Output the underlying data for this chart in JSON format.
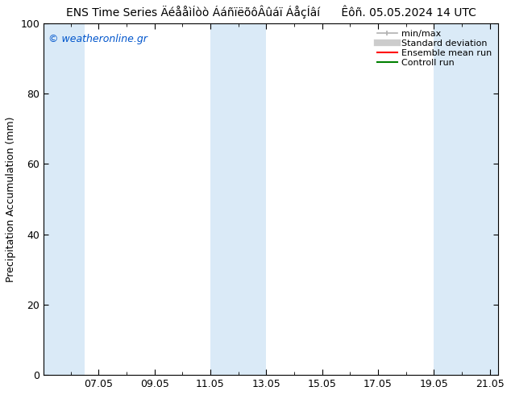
{
  "title": "ENS Time Series ÄéååìÍòò ÁáñïëõôÂûáï ÁåçÍâí",
  "title_right": "Êôñ. 05.05.2024 14 UTC",
  "ylabel": "Precipitation Accumulation (mm)",
  "watermark": "© weatheronline.gr",
  "watermark_color": "#0055cc",
  "ylim": [
    0,
    100
  ],
  "yticks": [
    0,
    20,
    40,
    60,
    80,
    100
  ],
  "xlim": [
    5.04,
    21.3
  ],
  "xtick_positions": [
    7,
    9,
    11,
    13,
    15,
    17,
    19,
    21
  ],
  "xtick_labels": [
    "07.05",
    "09.05",
    "11.05",
    "13.05",
    "15.05",
    "17.05",
    "19.05",
    "21.05"
  ],
  "bg_color": "#ffffff",
  "plot_bg_color": "#ffffff",
  "shaded_regions": [
    {
      "xstart": 5.04,
      "xend": 6.5,
      "color": "#daeaf7"
    },
    {
      "xstart": 11.0,
      "xend": 13.0,
      "color": "#daeaf7"
    },
    {
      "xstart": 19.0,
      "xend": 21.3,
      "color": "#daeaf7"
    }
  ],
  "legend_entries": [
    {
      "label": "min/max",
      "color": "#b0b0b0",
      "lw": 1.2
    },
    {
      "label": "Standard deviation",
      "color": "#cccccc",
      "lw": 6
    },
    {
      "label": "Ensemble mean run",
      "color": "#ff0000",
      "lw": 1.5
    },
    {
      "label": "Controll run",
      "color": "#008000",
      "lw": 1.5
    }
  ],
  "title_fontsize": 10,
  "ylabel_fontsize": 9,
  "tick_fontsize": 9,
  "legend_fontsize": 8,
  "watermark_fontsize": 9
}
